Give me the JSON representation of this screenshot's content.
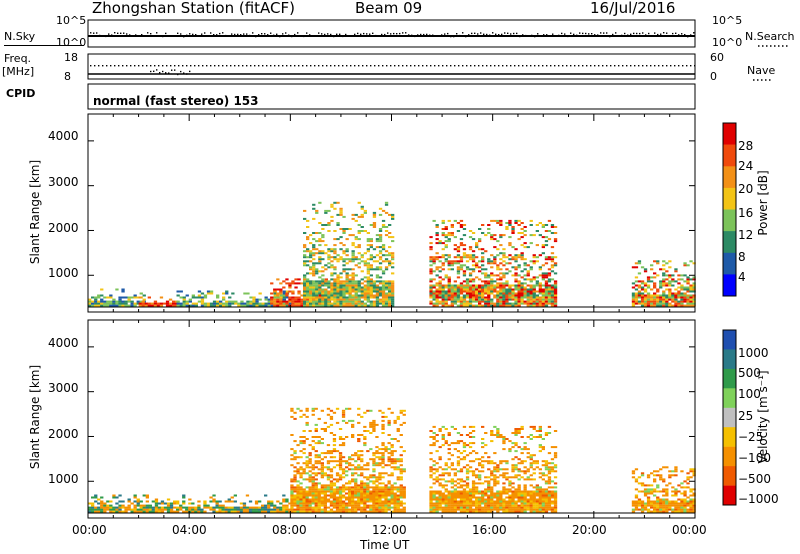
{
  "header": {
    "station": "Zhongshan Station (fitACF)",
    "beam": "Beam 09",
    "date": "16/Jul/2016"
  },
  "strip1": {
    "left_label": "N.Sky",
    "left_ticks": [
      "10^5",
      "10^0"
    ],
    "right_ticks": [
      "10^5",
      "10^0"
    ],
    "right_label": "N.Search"
  },
  "strip2": {
    "left_label_1": "Freq.",
    "left_label_2": "[MHz]",
    "left_ticks": [
      "18",
      "8"
    ],
    "right_ticks": [
      "60",
      "0"
    ],
    "right_label": "Nave"
  },
  "cpid": {
    "label": "CPID",
    "value": "normal (fast stereo) 153"
  },
  "panels": {
    "ylabel": "Slant Range [km]",
    "yticks": [
      "4000",
      "3000",
      "2000",
      "1000"
    ],
    "xticks": [
      "00:00",
      "04:00",
      "08:00",
      "12:00",
      "16:00",
      "20:00",
      "00:00"
    ],
    "xlabel": "Time UT"
  },
  "power_scale": {
    "label": "Power [dB]",
    "ticks": [
      "28",
      "24",
      "20",
      "16",
      "12",
      "8",
      "4"
    ],
    "colors": [
      "#0000ff",
      "#1e5aa8",
      "#2c8a64",
      "#7cc35a",
      "#f3c416",
      "#f39016",
      "#f04a0c",
      "#e00000"
    ]
  },
  "velocity_scale": {
    "label": "Velocity [m s⁻¹]",
    "ticks": [
      "1000",
      "500",
      "100",
      "25",
      "−25",
      "−100",
      "−500",
      "−1000"
    ],
    "colors": [
      "#1f4fb0",
      "#2a7a88",
      "#2f9a4a",
      "#7fd15a",
      "#c0c0c0",
      "#f5c000",
      "#f59000",
      "#f05a00",
      "#e00000"
    ]
  },
  "chart_data": [
    {
      "type": "heatmap",
      "title": "Power",
      "xlabel": "Time UT",
      "ylabel": "Slant Range [km]",
      "xlim": [
        0,
        24
      ],
      "ylim": [
        180,
        4600
      ],
      "colorbar_label": "Power [dB]",
      "colorbar_ticks": [
        4,
        8,
        12,
        16,
        20,
        24,
        28
      ],
      "regions": [
        {
          "t": [
            0.0,
            2.2
          ],
          "r": [
            300,
            700
          ],
          "level": "low-mid"
        },
        {
          "t": [
            2.0,
            3.5
          ],
          "r": [
            300,
            500
          ],
          "level": "high"
        },
        {
          "t": [
            3.5,
            8.0
          ],
          "r": [
            300,
            650
          ],
          "level": "low-mid"
        },
        {
          "t": [
            7.2,
            9.5
          ],
          "r": [
            300,
            900
          ],
          "level": "high"
        },
        {
          "t": [
            8.5,
            12.0
          ],
          "r": [
            300,
            2600
          ],
          "level": "mid"
        },
        {
          "t": [
            13.5,
            18.5
          ],
          "r": [
            300,
            2200
          ],
          "level": "mid-high"
        },
        {
          "t": [
            21.5,
            24.0
          ],
          "r": [
            300,
            1300
          ],
          "level": "mid-high"
        }
      ]
    },
    {
      "type": "heatmap",
      "title": "Velocity",
      "xlabel": "Time UT",
      "ylabel": "Slant Range [km]",
      "xlim": [
        0,
        24
      ],
      "ylim": [
        180,
        4600
      ],
      "colorbar_label": "Velocity [m s⁻¹]",
      "colorbar_ticks": [
        -1000,
        -500,
        -100,
        -25,
        25,
        100,
        500,
        1000
      ],
      "regions": [
        {
          "t": [
            0.0,
            8.0
          ],
          "r": [
            300,
            700
          ],
          "level": "mixed"
        },
        {
          "t": [
            8.0,
            12.5
          ],
          "r": [
            300,
            2600
          ],
          "level": "negative"
        },
        {
          "t": [
            13.5,
            18.5
          ],
          "r": [
            300,
            2200
          ],
          "level": "negative"
        },
        {
          "t": [
            21.5,
            24.0
          ],
          "r": [
            300,
            1300
          ],
          "level": "negative"
        }
      ]
    }
  ]
}
